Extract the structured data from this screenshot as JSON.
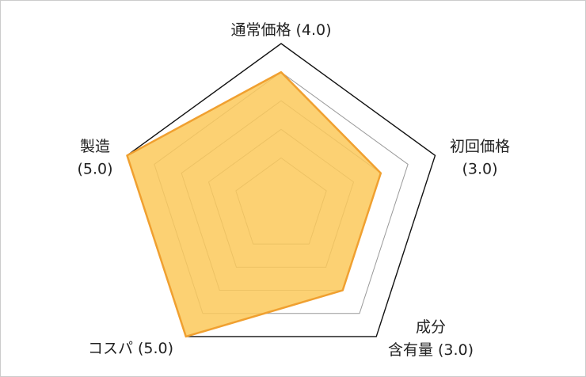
{
  "chart_data": {
    "type": "radar",
    "categories": [
      [
        "通常価格"
      ],
      [
        "初回価格"
      ],
      [
        "成分",
        "含有量"
      ],
      [
        "コスパ"
      ],
      [
        "製造"
      ]
    ],
    "values": [
      4,
      3,
      3,
      5,
      5
    ],
    "value_labels": [
      "(4.0)",
      "(3.0)",
      "(3.0)",
      "(5.0)",
      "(5.0)"
    ],
    "rlim": [
      0,
      5
    ],
    "rticks": [
      1,
      2,
      3,
      4,
      5
    ],
    "color": "#fbc95a",
    "line_color": "#f0a030",
    "grid_color": "#999999",
    "outer_color": "#111111"
  }
}
